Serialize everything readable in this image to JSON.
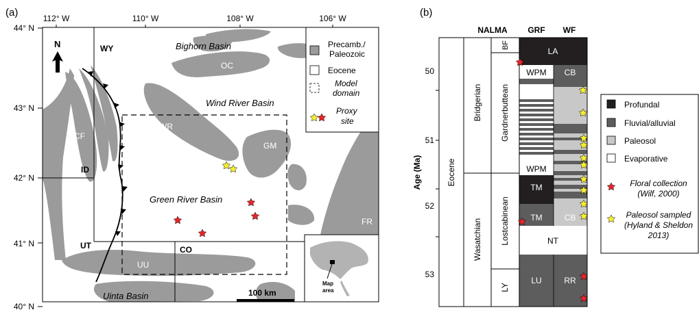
{
  "panel_a": {
    "label": "(a)",
    "lon_labels": [
      "112° W",
      "110° W",
      "108° W",
      "106° W"
    ],
    "lat_labels": [
      "44° N",
      "43° N",
      "42° N",
      "41° N",
      "40° N"
    ],
    "north": "N",
    "states": {
      "wy": "WY",
      "id": "ID",
      "ut": "UT",
      "co": "CO"
    },
    "features": {
      "bighorn": "Bighorn Basin",
      "wind_river": "Wind River Basin",
      "green_river": "Green River Basin",
      "uinta": "Uinta Basin",
      "oc": "OC",
      "wr": "WR",
      "gm": "GM",
      "cf": "CF",
      "fr": "FR",
      "uu": "UU"
    },
    "legend": {
      "precamb_1": "Precamb./",
      "precamb_2": "Paleozoic",
      "eocene": "Eocene",
      "model_1": "Model",
      "model_2": "domain",
      "proxy_1": "Proxy",
      "proxy_2": "site"
    },
    "scale_bar": "100 km",
    "inset_1": "Map",
    "inset_2": "area",
    "colors": {
      "rock": "#9b9b9b",
      "star_red": "#e8252a",
      "star_yellow": "#f7ee2e"
    }
  },
  "panel_b": {
    "label": "(b)",
    "columns": [
      "NALMA",
      "GRF",
      "WF"
    ],
    "axis_label": "Age (Ma)",
    "ticks": [
      "50",
      "51",
      "52",
      "53"
    ],
    "epoch": "Eocene",
    "nalma": [
      "Bridgerian",
      "Wasatchian"
    ],
    "members": [
      "BF",
      "Gardnerbuttean",
      "Lostcabinean",
      "LY"
    ],
    "units": {
      "la": "LA",
      "wpm1": "WPM",
      "cb1": "CB",
      "wpm2": "WPM",
      "tm1": "TM",
      "tm2": "TM",
      "cb2": "CB",
      "nt": "NT",
      "lu": "LU",
      "rr": "RR"
    },
    "legend": {
      "profundal": "Profundal",
      "fluvial": "Fluvial/alluvial",
      "paleosol": "Paleosol",
      "evaporative": "Evaporative",
      "floral_1": "Floral collection",
      "floral_2": "(Wilf, 2000)",
      "paleosol_s_1": "Paleosol sampled",
      "paleosol_s_2": "(Hyland & Sheldon",
      "paleosol_s_3": "2013)"
    },
    "colors": {
      "profundal": "#231f20",
      "fluvial": "#5d5d5d",
      "paleosol": "#c8c8c8",
      "evaporative": "#ffffff"
    }
  }
}
